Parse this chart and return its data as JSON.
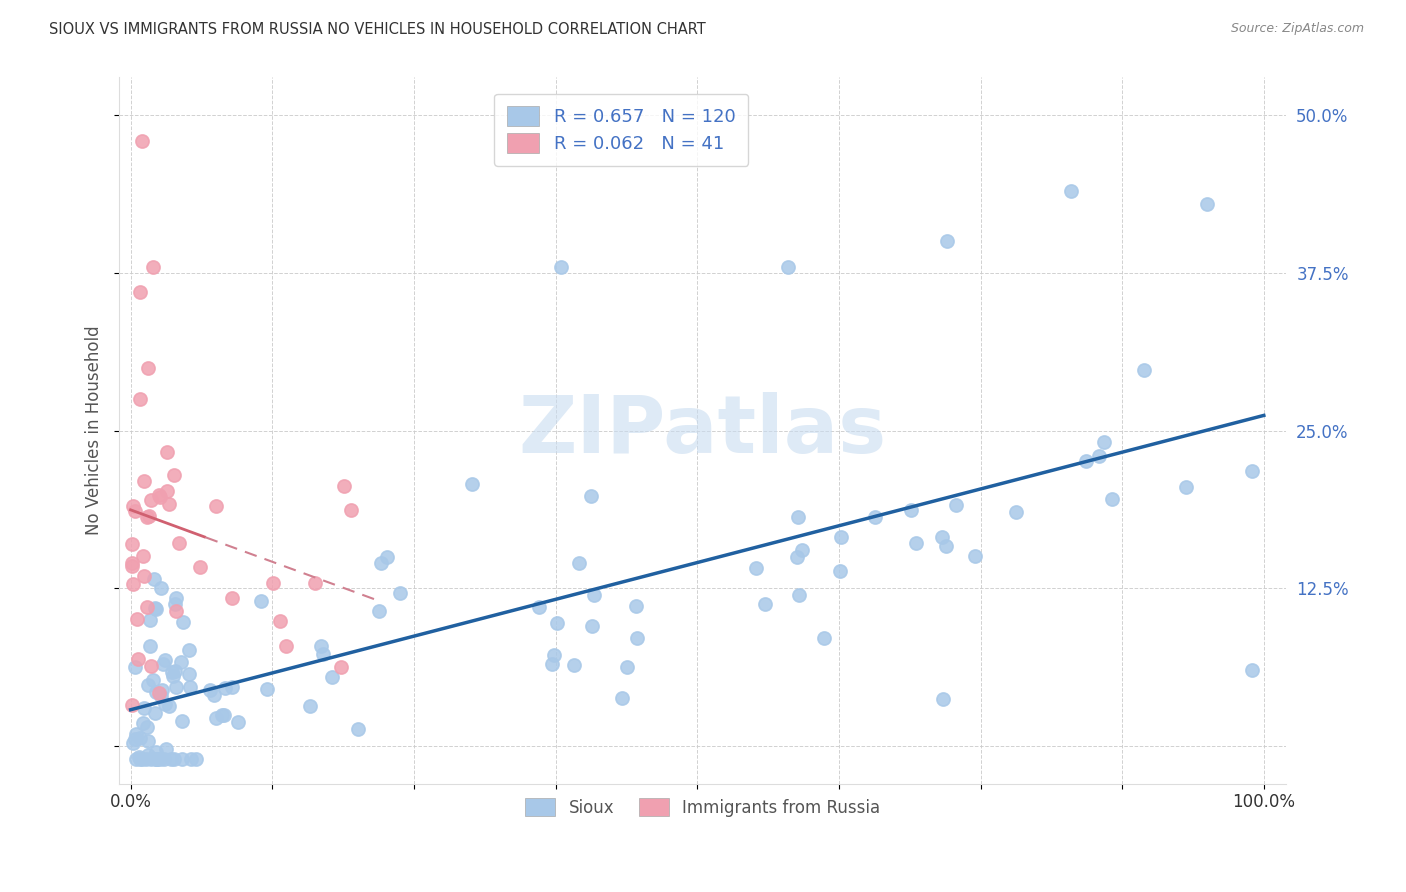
{
  "title": "SIOUX VS IMMIGRANTS FROM RUSSIA NO VEHICLES IN HOUSEHOLD CORRELATION CHART",
  "source": "Source: ZipAtlas.com",
  "ylabel_label": "No Vehicles in Household",
  "sioux_R": "0.657",
  "sioux_N": "120",
  "russia_R": "0.062",
  "russia_N": "41",
  "blue_marker_color": "#A8C8E8",
  "pink_marker_color": "#F0A0B0",
  "blue_line_color": "#2060A0",
  "pink_line_color": "#D06070",
  "pink_dash_color": "#D08090",
  "legend_text_color": "#4472C4",
  "watermark_color": "#C8DCF0",
  "background_color": "#FFFFFF",
  "grid_color": "#CCCCCC",
  "title_color": "#333333",
  "source_color": "#888888",
  "ylabel_color": "#555555",
  "tick_color": "#4472C4",
  "right_tick_color": "#4472C4"
}
